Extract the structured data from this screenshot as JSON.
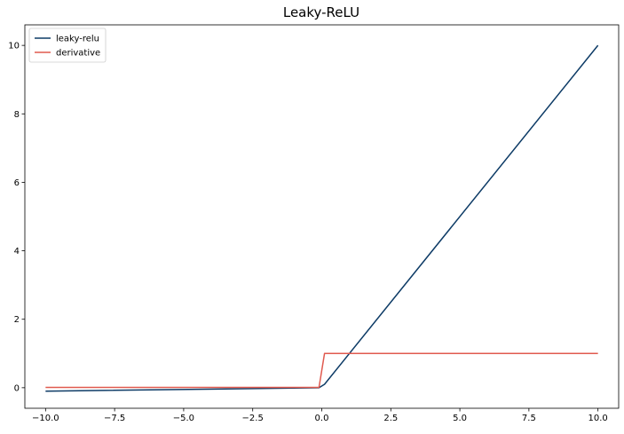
{
  "chart_data": {
    "type": "line",
    "title": "Leaky-ReLU",
    "xlabel": "",
    "ylabel": "",
    "xlim": [
      -10.75,
      10.75
    ],
    "ylim": [
      -0.6,
      10.6
    ],
    "grid": false,
    "legend_position": "upper-left",
    "xticks": [
      -10.0,
      -7.5,
      -5.0,
      -2.5,
      0.0,
      2.5,
      5.0,
      7.5,
      10.0
    ],
    "xtick_labels": [
      "−10.0",
      "−7.5",
      "−5.0",
      "−2.5",
      "0.0",
      "2.5",
      "5.0",
      "7.5",
      "10.0"
    ],
    "yticks": [
      0,
      2,
      4,
      6,
      8,
      10
    ],
    "ytick_labels": [
      "0",
      "2",
      "4",
      "6",
      "8",
      "10"
    ],
    "series": [
      {
        "name": "leaky-relu",
        "color": "#0d3b66",
        "x": [
          -10.0,
          -0.1,
          0.1,
          10.0
        ],
        "y": [
          -0.1,
          -0.001,
          0.1,
          10.0
        ]
      },
      {
        "name": "derivative",
        "color": "#e05a4f",
        "x": [
          -10.0,
          -0.1,
          0.1,
          10.0
        ],
        "y": [
          0.01,
          0.01,
          1.0,
          1.0
        ]
      }
    ]
  }
}
